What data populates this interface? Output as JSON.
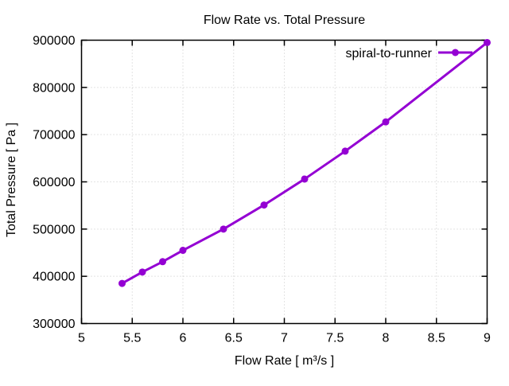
{
  "chart_data": {
    "type": "line",
    "title": "Flow Rate vs. Total Pressure",
    "xlabel": "Flow Rate [ m³/s ]",
    "ylabel": "Total Pressure [ Pa ]",
    "xlim": [
      5,
      9
    ],
    "ylim": [
      300000,
      900000
    ],
    "x_ticks": [
      5,
      5.5,
      6,
      6.5,
      7,
      7.5,
      8,
      8.5,
      9
    ],
    "x_tick_labels": [
      "5",
      "5.5",
      "6",
      "6.5",
      "7",
      "7.5",
      "8",
      "8.5",
      "9"
    ],
    "y_ticks": [
      300000,
      400000,
      500000,
      600000,
      700000,
      800000,
      900000
    ],
    "y_tick_labels": [
      "300000",
      "400000",
      "500000",
      "600000",
      "700000",
      "800000",
      "900000"
    ],
    "grid": true,
    "grid_style": "dotted",
    "grid_color": "#c8c8c8",
    "frame_color": "#000000",
    "background_color": "#ffffff",
    "legend_position": "top-right-inside",
    "series": [
      {
        "name": "spiral-to-runner",
        "color": "#9400d3",
        "marker": "filled-circle",
        "line_width": 3,
        "x": [
          5.4,
          5.6,
          5.8,
          6.0,
          6.4,
          6.8,
          7.2,
          7.6,
          8.0,
          9.0
        ],
        "y": [
          385000,
          409000,
          431000,
          455000,
          500000,
          551000,
          606000,
          665000,
          727000,
          895000
        ]
      }
    ]
  }
}
